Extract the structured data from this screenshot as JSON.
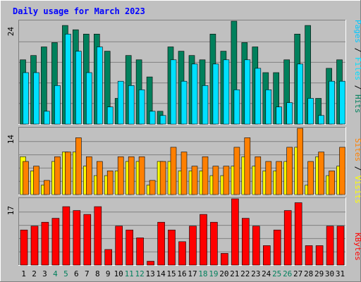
{
  "title": "Daily usage for March 2023",
  "colors": {
    "background": "#c0c0c0",
    "plot_bg": "#c0c0c0",
    "title": "#0000ff",
    "grid": "#808080",
    "hits": "#00805c",
    "files": "#00e0ff",
    "pages": "#00c8ff",
    "visits": "#ffff00",
    "sites": "#ff8000",
    "kbytes": "#ff0000",
    "weekend_day": "#00805c",
    "weekday": "#000000"
  },
  "panels": {
    "top": {
      "ymax_label": "24",
      "legend": [
        {
          "text": "Pages",
          "color": "#00c8ff"
        },
        {
          "text": " / ",
          "color": "#000000"
        },
        {
          "text": "Files",
          "color": "#00e0ff"
        },
        {
          "text": " / ",
          "color": "#000000"
        },
        {
          "text": "Hits",
          "color": "#00805c"
        }
      ]
    },
    "middle": {
      "ymax_label": "14",
      "legend": [
        {
          "text": "Sites",
          "color": "#ff8000"
        },
        {
          "text": " / ",
          "color": "#000000"
        },
        {
          "text": "Visits",
          "color": "#ffff00"
        }
      ]
    },
    "bottom": {
      "ymax_label": "17",
      "legend": [
        {
          "text": "KBytes",
          "color": "#ff0000"
        }
      ]
    }
  },
  "chart_data": {
    "type": "bar",
    "title": "Daily usage for March 2023",
    "categories": [
      "1",
      "2",
      "3",
      "4",
      "5",
      "6",
      "7",
      "8",
      "9",
      "10",
      "11",
      "12",
      "13",
      "14",
      "15",
      "16",
      "17",
      "18",
      "19",
      "20",
      "21",
      "22",
      "23",
      "24",
      "25",
      "26",
      "27",
      "28",
      "29",
      "30",
      "31"
    ],
    "weekend_days": [
      "4",
      "5",
      "11",
      "12",
      "18",
      "19",
      "25",
      "26"
    ],
    "panels": [
      {
        "name": "top",
        "ymax": 24,
        "series": [
          {
            "name": "Hits",
            "values": [
              15,
              16,
              18,
              19,
              23,
              22,
              21,
              21,
              17,
              6,
              16,
              15,
              11,
              3,
              18,
              17,
              16,
              15,
              21,
              17,
              24,
              19,
              18,
              12,
              12,
              15,
              21,
              23,
              6,
              13,
              15
            ]
          },
          {
            "name": "Files",
            "values": [
              12,
              12,
              3,
              9,
              21,
              17,
              12,
              18,
              4,
              10,
              9,
              8,
              3,
              2,
              15,
              10,
              14,
              9,
              14,
              15,
              8,
              15,
              13,
              8,
              4,
              5,
              14,
              6,
              2,
              10,
              10
            ]
          },
          {
            "name": "Pages",
            "values": [
              0,
              0,
              0,
              0,
              0,
              0,
              0,
              0,
              0,
              0,
              0,
              0,
              0,
              0,
              0,
              0,
              0,
              0,
              0,
              0,
              0,
              0,
              0,
              0,
              0,
              0,
              0,
              0,
              0,
              0,
              0
            ]
          }
        ]
      },
      {
        "name": "middle",
        "ymax": 14,
        "series": [
          {
            "name": "Visits",
            "values": [
              8,
              5,
              2,
              7,
              9,
              9,
              6,
              4,
              4,
              5,
              7,
              7,
              2,
              7,
              7,
              5,
              5,
              5,
              4,
              4,
              6,
              8,
              6,
              5,
              5,
              7,
              10,
              2,
              8,
              4,
              6
            ]
          },
          {
            "name": "Sites",
            "values": [
              7,
              6,
              3,
              8,
              9,
              12,
              8,
              7,
              5,
              8,
              8,
              8,
              3,
              7,
              10,
              9,
              6,
              8,
              6,
              6,
              10,
              12,
              8,
              7,
              7,
              10,
              14,
              7,
              9,
              5,
              10
            ]
          }
        ]
      },
      {
        "name": "bottom",
        "ymax": 17,
        "series": [
          {
            "name": "KBytes",
            "values": [
              9,
              10,
              11,
              12,
              15,
              14,
              13,
              15,
              4,
              10,
              9,
              7,
              1,
              11,
              9,
              6,
              10,
              13,
              11,
              3,
              17,
              12,
              10,
              5,
              9,
              14,
              16,
              5,
              5,
              10,
              10
            ]
          }
        ]
      }
    ]
  }
}
